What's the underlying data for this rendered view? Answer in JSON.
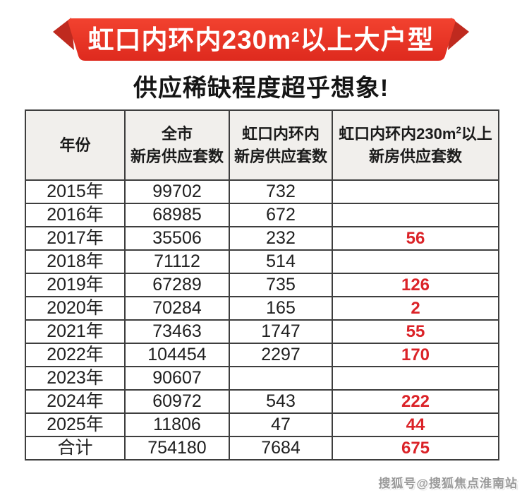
{
  "colors": {
    "ribbon_red_top": "#F2422F",
    "ribbon_red_bottom": "#DE2A1E",
    "ribbon_fold_red": "#BF2A1F",
    "accent_red": "#DB2328",
    "header_bg": "#F1EFEC",
    "table_border": "#3E3E3E"
  },
  "banner": {
    "title_pre": "虹口内环内230m",
    "title_sup": "2",
    "title_post": "以上大户型"
  },
  "subtitle": "供应稀缺程度超乎想象!",
  "table": {
    "headers": [
      {
        "line1": "年份"
      },
      {
        "line1": "全市",
        "line2": "新房供应套数"
      },
      {
        "line1": "虹口内环内",
        "line2": "新房供应套数"
      },
      {
        "line1_pre": "虹口内环内230m",
        "sup": "2",
        "line1_post": "以上",
        "line2": "新房供应套数"
      }
    ]
  },
  "chart_data": {
    "type": "table",
    "title": "虹口内环内230m²以上大户型",
    "subtitle": "供应稀缺程度超乎想象!",
    "columns": [
      "年份",
      "全市新房供应套数",
      "虹口内环内新房供应套数",
      "虹口内环内230m²以上新房供应套数"
    ],
    "rows": [
      [
        "2015年",
        "99702",
        "732",
        ""
      ],
      [
        "2016年",
        "68985",
        "672",
        ""
      ],
      [
        "2017年",
        "35506",
        "232",
        "56"
      ],
      [
        "2018年",
        "71112",
        "514",
        ""
      ],
      [
        "2019年",
        "67289",
        "735",
        "126"
      ],
      [
        "2020年",
        "70284",
        "165",
        "2"
      ],
      [
        "2021年",
        "73463",
        "1747",
        "55"
      ],
      [
        "2022年",
        "104454",
        "2297",
        "170"
      ],
      [
        "2023年",
        "90607",
        "",
        ""
      ],
      [
        "2024年",
        "60972",
        "543",
        "222"
      ],
      [
        "2025年",
        "11806",
        "47",
        "44"
      ],
      [
        "合计",
        "754180",
        "7684",
        "675"
      ]
    ],
    "highlight_column": 3,
    "highlight_color": "#DB2328",
    "total_row_label": "合计"
  },
  "watermark": "搜狐号@搜狐焦点淮南站"
}
